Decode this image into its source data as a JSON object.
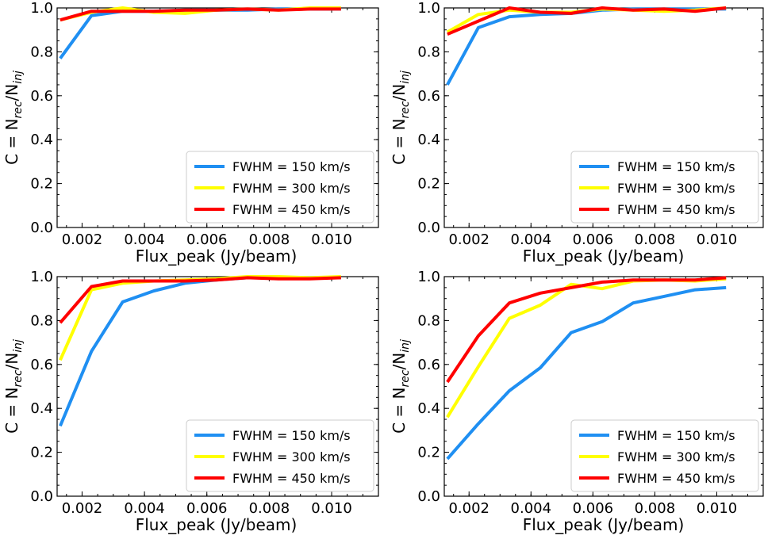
{
  "chart_data": [
    {
      "type": "line",
      "xlabel": "Flux_peak (Jy/beam)",
      "ylabel_main": "C = N",
      "ylabel_sub1": "rec",
      "ylabel_mid": "/N",
      "ylabel_sub2": "inj",
      "xlim": [
        0.0012,
        0.0115
      ],
      "ylim": [
        0.0,
        1.0
      ],
      "xticks": [
        0.002,
        0.004,
        0.006,
        0.008,
        0.01
      ],
      "xtick_labels": [
        "0.002",
        "0.004",
        "0.006",
        "0.008",
        "0.010"
      ],
      "yticks": [
        0.0,
        0.2,
        0.4,
        0.6,
        0.8,
        1.0
      ],
      "ytick_labels": [
        "0.0",
        "0.2",
        "0.4",
        "0.6",
        "0.8",
        "1.0"
      ],
      "legend_position": "lower-right",
      "x": [
        0.0013,
        0.0023,
        0.0033,
        0.0043,
        0.0053,
        0.0063,
        0.0073,
        0.0083,
        0.0093,
        0.0103
      ],
      "series": [
        {
          "name": "FWHM = 150 km/s",
          "color": "#1f8ff2",
          "values": [
            0.77,
            0.965,
            0.985,
            0.985,
            0.99,
            0.99,
            0.99,
            0.995,
            0.995,
            0.995
          ]
        },
        {
          "name": "FWHM = 300 km/s",
          "color": "#ffff00",
          "values": [
            0.945,
            0.98,
            1.0,
            0.98,
            0.975,
            0.99,
            0.995,
            0.99,
            1.0,
            1.0
          ]
        },
        {
          "name": "FWHM = 450 km/s",
          "color": "#ff0000",
          "values": [
            0.945,
            0.985,
            0.985,
            0.985,
            0.99,
            0.99,
            0.995,
            0.99,
            0.995,
            0.995
          ]
        }
      ]
    },
    {
      "type": "line",
      "xlabel": "Flux_peak (Jy/beam)",
      "ylabel_main": "C = N",
      "ylabel_sub1": "rec",
      "ylabel_mid": "/N",
      "ylabel_sub2": "inj",
      "xlim": [
        0.0012,
        0.0115
      ],
      "ylim": [
        0.0,
        1.0
      ],
      "xticks": [
        0.002,
        0.004,
        0.006,
        0.008,
        0.01
      ],
      "xtick_labels": [
        "0.002",
        "0.004",
        "0.006",
        "0.008",
        "0.010"
      ],
      "yticks": [
        0.0,
        0.2,
        0.4,
        0.6,
        0.8,
        1.0
      ],
      "ytick_labels": [
        "0.0",
        "0.2",
        "0.4",
        "0.6",
        "0.8",
        "1.0"
      ],
      "legend_position": "lower-right",
      "x": [
        0.0013,
        0.0023,
        0.0033,
        0.0043,
        0.0053,
        0.0063,
        0.0073,
        0.0083,
        0.0093,
        0.0103
      ],
      "series": [
        {
          "name": "FWHM = 150 km/s",
          "color": "#1f8ff2",
          "values": [
            0.65,
            0.91,
            0.96,
            0.97,
            0.975,
            0.99,
            0.995,
            0.995,
            0.995,
            0.995
          ]
        },
        {
          "name": "FWHM = 300 km/s",
          "color": "#ffff00",
          "values": [
            0.89,
            0.97,
            0.99,
            0.98,
            0.98,
            0.995,
            0.99,
            0.985,
            0.99,
            1.0
          ]
        },
        {
          "name": "FWHM = 450 km/s",
          "color": "#ff0000",
          "values": [
            0.88,
            0.94,
            1.0,
            0.98,
            0.975,
            1.0,
            0.99,
            0.995,
            0.985,
            1.0
          ]
        }
      ]
    },
    {
      "type": "line",
      "xlabel": "Flux_peak (Jy/beam)",
      "ylabel_main": "C = N",
      "ylabel_sub1": "rec",
      "ylabel_mid": "/N",
      "ylabel_sub2": "inj",
      "xlim": [
        0.0012,
        0.0115
      ],
      "ylim": [
        0.0,
        1.0
      ],
      "xticks": [
        0.002,
        0.004,
        0.006,
        0.008,
        0.01
      ],
      "xtick_labels": [
        "0.002",
        "0.004",
        "0.006",
        "0.008",
        "0.010"
      ],
      "yticks": [
        0.0,
        0.2,
        0.4,
        0.6,
        0.8,
        1.0
      ],
      "ytick_labels": [
        "0.0",
        "0.2",
        "0.4",
        "0.6",
        "0.8",
        "1.0"
      ],
      "legend_position": "lower-right",
      "x": [
        0.0013,
        0.0023,
        0.0033,
        0.0043,
        0.0053,
        0.0063,
        0.0073,
        0.0083,
        0.0093,
        0.0103
      ],
      "series": [
        {
          "name": "FWHM = 150 km/s",
          "color": "#1f8ff2",
          "values": [
            0.32,
            0.66,
            0.885,
            0.935,
            0.97,
            0.985,
            0.995,
            0.995,
            0.995,
            0.995
          ]
        },
        {
          "name": "FWHM = 300 km/s",
          "color": "#ffff00",
          "values": [
            0.62,
            0.94,
            0.97,
            0.98,
            0.985,
            0.99,
            1.0,
            1.0,
            0.995,
            1.0
          ]
        },
        {
          "name": "FWHM = 450 km/s",
          "color": "#ff0000",
          "values": [
            0.79,
            0.955,
            0.98,
            0.98,
            0.98,
            0.985,
            0.995,
            0.99,
            0.99,
            0.995
          ]
        }
      ]
    },
    {
      "type": "line",
      "xlabel": "Flux_peak (Jy/beam)",
      "ylabel_main": "C = N",
      "ylabel_sub1": "rec",
      "ylabel_mid": "/N",
      "ylabel_sub2": "inj",
      "xlim": [
        0.0012,
        0.0115
      ],
      "ylim": [
        0.0,
        1.0
      ],
      "xticks": [
        0.002,
        0.004,
        0.006,
        0.008,
        0.01
      ],
      "xtick_labels": [
        "0.002",
        "0.004",
        "0.006",
        "0.008",
        "0.010"
      ],
      "yticks": [
        0.0,
        0.2,
        0.4,
        0.6,
        0.8,
        1.0
      ],
      "ytick_labels": [
        "0.0",
        "0.2",
        "0.4",
        "0.6",
        "0.8",
        "1.0"
      ],
      "legend_position": "lower-right",
      "x": [
        0.0013,
        0.0023,
        0.0033,
        0.0043,
        0.0053,
        0.0063,
        0.0073,
        0.0083,
        0.0093,
        0.0103
      ],
      "series": [
        {
          "name": "FWHM = 150 km/s",
          "color": "#1f8ff2",
          "values": [
            0.17,
            0.33,
            0.48,
            0.585,
            0.745,
            0.795,
            0.88,
            0.91,
            0.94,
            0.95
          ]
        },
        {
          "name": "FWHM = 300 km/s",
          "color": "#ffff00",
          "values": [
            0.36,
            0.59,
            0.81,
            0.87,
            0.965,
            0.945,
            0.98,
            0.985,
            0.98,
            0.99
          ]
        },
        {
          "name": "FWHM = 450 km/s",
          "color": "#ff0000",
          "values": [
            0.52,
            0.73,
            0.88,
            0.925,
            0.95,
            0.975,
            0.985,
            0.985,
            0.985,
            0.995
          ]
        }
      ]
    }
  ]
}
